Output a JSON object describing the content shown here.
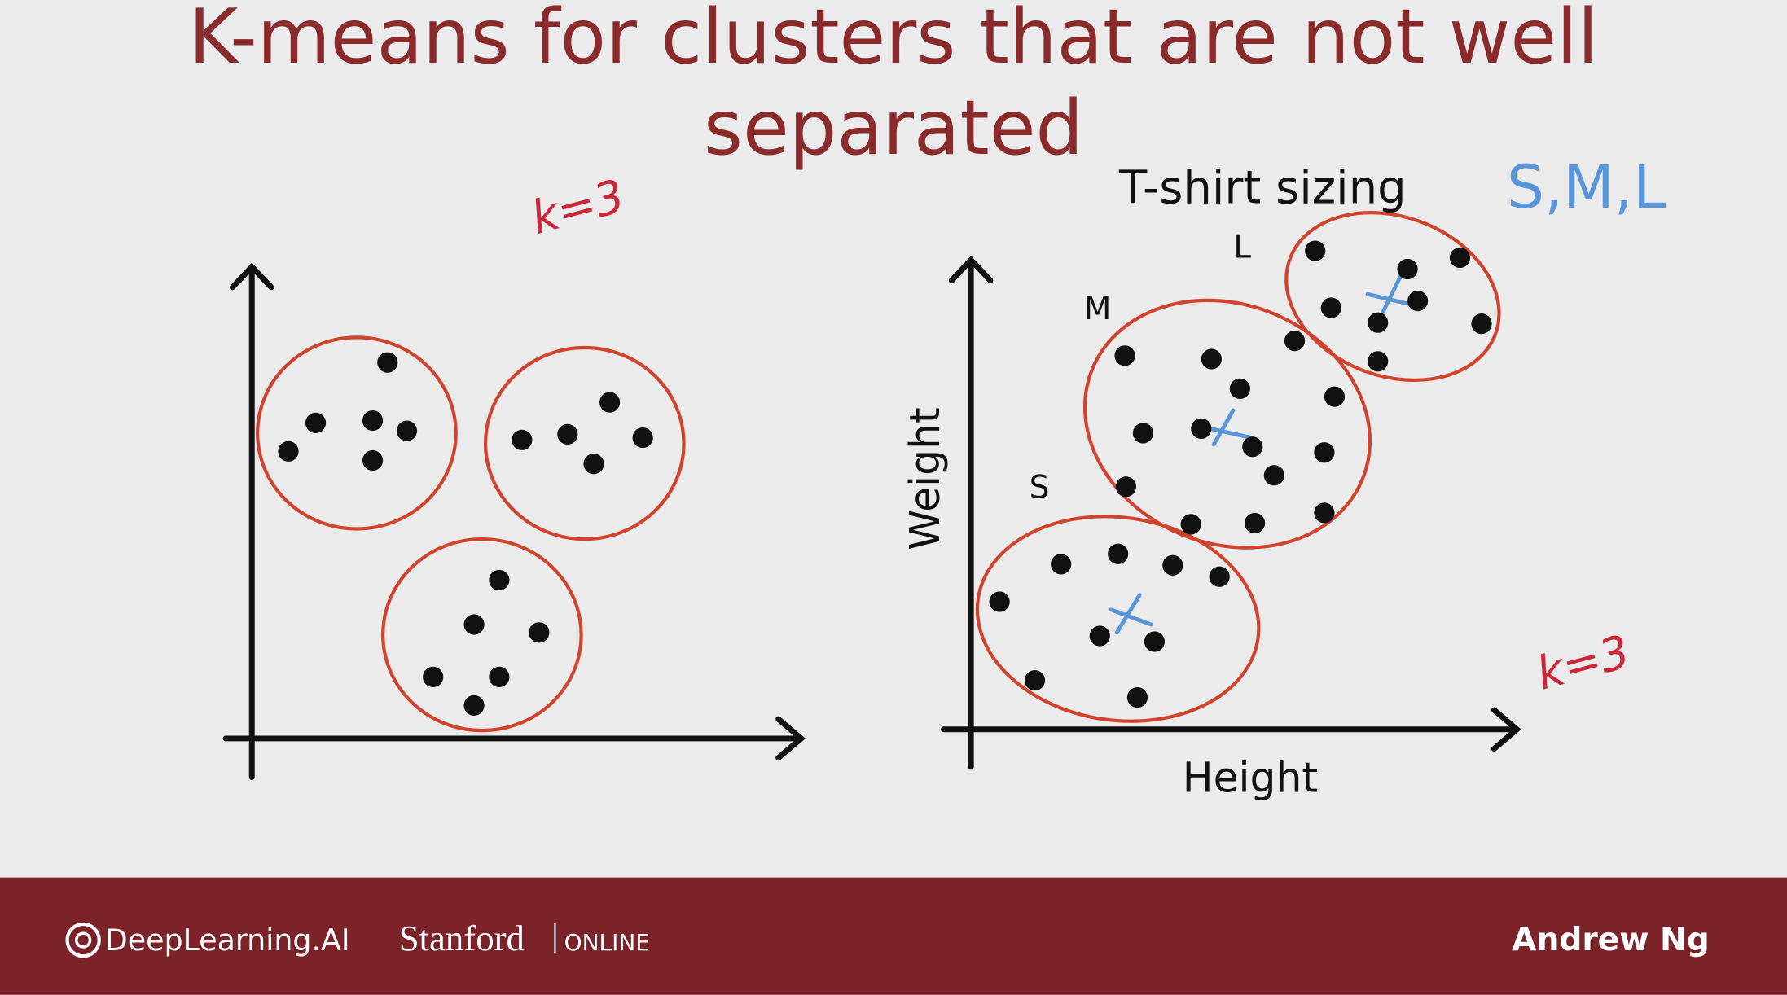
{
  "title": "K-means for clusters that are not well separated",
  "left_diagram": {
    "annotation": "k=3"
  },
  "right_diagram": {
    "heading": "T-shirt sizing",
    "sizes_note": "S,M,L",
    "x_label": "Height",
    "y_label": "Weight",
    "cluster_labels": [
      "S",
      "M",
      "L"
    ],
    "annotation": "k=3"
  },
  "footer": {
    "brand": "DeepLearning.AI",
    "university": "Stanford",
    "university_suffix": "ONLINE",
    "author": "Andrew Ng"
  }
}
